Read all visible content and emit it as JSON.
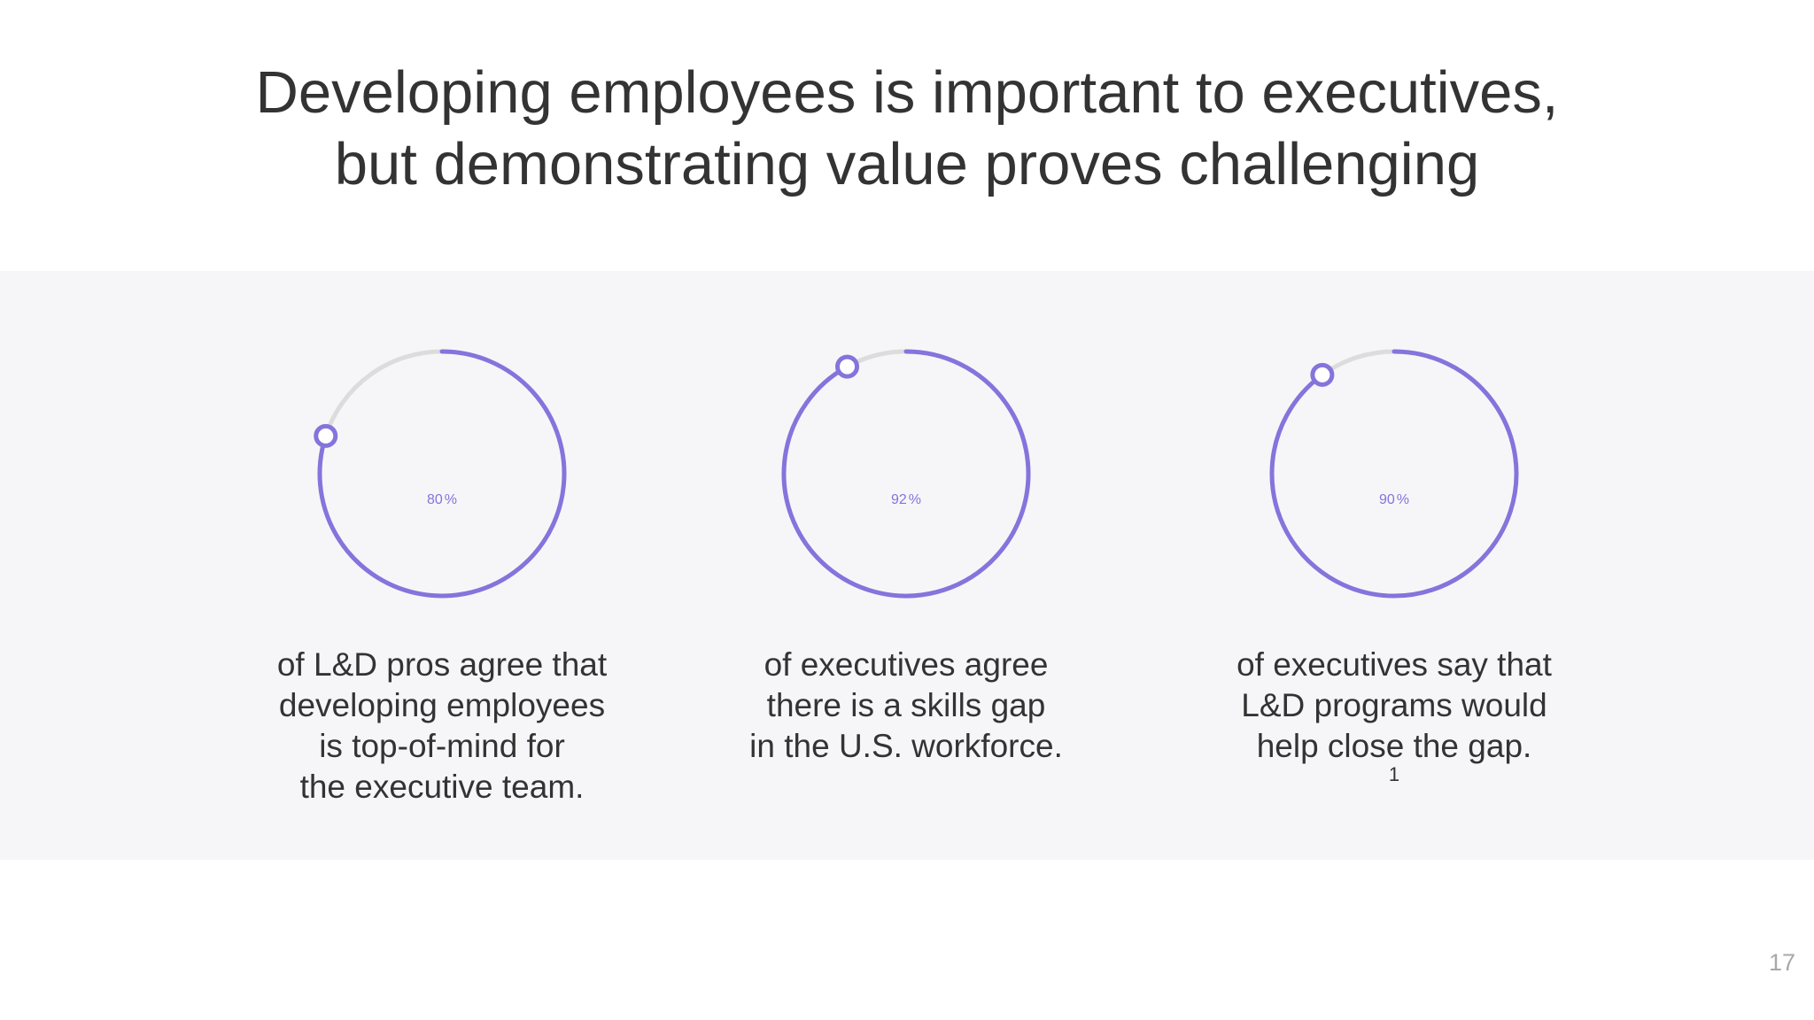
{
  "slide": {
    "title_lines": [
      "Developing employees is important to executives,",
      "but demonstrating value proves challenging"
    ],
    "page_number": "17"
  },
  "colors": {
    "accent": "#8474dc",
    "track": "#dcdcdc",
    "band_background": "#f6f6f8",
    "text": "#333333"
  },
  "chart_data": [
    {
      "type": "gauge",
      "value": 80,
      "max": 100,
      "number": "80",
      "unit": "%",
      "caption_lines": [
        "of L&D pros agree that",
        "developing employees",
        "is top-of-mind for",
        "the executive team."
      ],
      "footnote": ""
    },
    {
      "type": "gauge",
      "value": 92,
      "max": 100,
      "number": "92",
      "unit": "%",
      "caption_lines": [
        "of executives agree",
        "there is a skills gap",
        "in the U.S. workforce."
      ],
      "footnote": ""
    },
    {
      "type": "gauge",
      "value": 90,
      "max": 100,
      "number": "90",
      "unit": "%",
      "caption_lines": [
        "of executives say that",
        "L&D programs would",
        "help close the gap."
      ],
      "footnote": "1"
    }
  ]
}
